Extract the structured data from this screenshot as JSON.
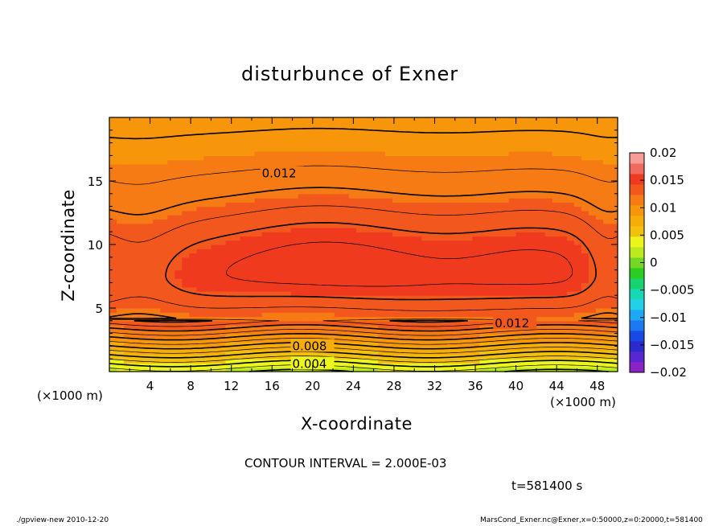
{
  "chart_data": {
    "type": "heatmap",
    "title": "disturbunce of Exner",
    "xlabel": "X-coordinate",
    "ylabel": "Z-coordinate",
    "x_unit": "(×1000 m)",
    "x_unit_right": "(×1000 m)",
    "xlim": [
      0,
      50
    ],
    "ylim": [
      0,
      20
    ],
    "xticks": [
      "4",
      "8",
      "12",
      "16",
      "20",
      "24",
      "28",
      "32",
      "36",
      "40",
      "44",
      "48"
    ],
    "yticks": [
      "5",
      "10",
      "15"
    ],
    "contour_labels": [
      "0.012",
      "0.012",
      "0.008",
      "0.004"
    ],
    "colorbar": {
      "vmin": -0.02,
      "vmax": 0.02,
      "tick_labels": [
        "0.02",
        "0.015",
        "0.01",
        "0.005",
        "0",
        "−0.005",
        "−0.01",
        "−0.015",
        "−0.02"
      ],
      "colors": [
        "#8b22c8",
        "#5a26d2",
        "#2a2acd",
        "#1848e6",
        "#1d79f1",
        "#1ea7f3",
        "#22d0e8",
        "#16d9b4",
        "#16d46d",
        "#2ccd22",
        "#74d823",
        "#bcea1d",
        "#ecf51b",
        "#f2c10e",
        "#f6ad0a",
        "#f7960a",
        "#f67b14",
        "#f2581d",
        "#ef3a1f",
        "#f06a62",
        "#f79c96"
      ]
    },
    "bands_bottom_to_top": [
      0.0,
      0.001,
      0.002,
      0.003,
      0.004,
      0.005,
      0.006,
      0.007,
      0.008,
      0.009,
      0.01,
      0.011,
      0.012,
      0.013,
      0.014,
      0.015
    ],
    "boundary_levels_bottom_to_top": [
      0.001,
      0.002,
      0.003,
      0.004,
      0.005,
      0.006,
      0.007,
      0.008,
      0.009,
      0.01,
      0.011,
      0.012,
      0.013,
      0.014,
      0.015
    ],
    "contour_interval_text": "CONTOUR INTERVAL = 2.000E-03"
  },
  "footer": {
    "time": "t=581400 s",
    "left": "./gpview-new 2010-12-20",
    "right": "MarsCond_Exner.nc@Exner,x=0:50000,z=0:20000,t=581400"
  }
}
